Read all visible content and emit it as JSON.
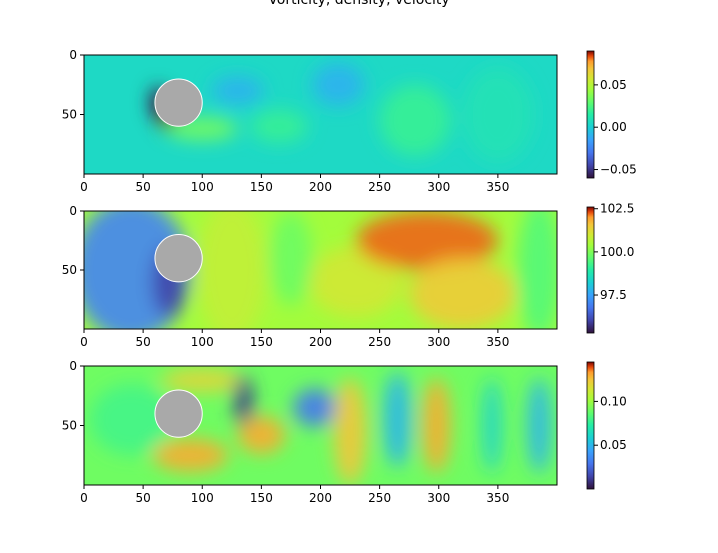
{
  "figure": {
    "title": "Vorticity, density, velocity"
  },
  "chart_data": [
    {
      "type": "heatmap",
      "title": "",
      "field": "vorticity",
      "xlim": [
        0,
        400
      ],
      "ylim": [
        100,
        0
      ],
      "xticks": [
        "0",
        "50",
        "100",
        "150",
        "200",
        "250",
        "300",
        "350"
      ],
      "yticks": [
        "0",
        "50"
      ],
      "colorbar": {
        "range": [
          -0.06,
          0.09
        ],
        "ticks": [
          "0.05",
          "0.00",
          "−0.05"
        ],
        "tick_values": [
          0.05,
          0.0,
          -0.05
        ],
        "colormap": "turbo"
      },
      "obstacle": {
        "shape": "circle",
        "center": [
          80,
          40
        ],
        "radius": 20,
        "color": "#a9a9a9"
      },
      "features": [
        {
          "cx": 70,
          "cy": 48,
          "rx": 8,
          "ry": 16,
          "value": 0.09
        },
        {
          "cx": 62,
          "cy": 40,
          "rx": 6,
          "ry": 14,
          "value": -0.06
        },
        {
          "cx": 100,
          "cy": 62,
          "rx": 30,
          "ry": 10,
          "value": 0.035
        },
        {
          "cx": 130,
          "cy": 30,
          "rx": 22,
          "ry": 12,
          "value": -0.01
        },
        {
          "cx": 165,
          "cy": 60,
          "rx": 24,
          "ry": 14,
          "value": 0.02
        },
        {
          "cx": 215,
          "cy": 25,
          "rx": 22,
          "ry": 18,
          "value": -0.01
        },
        {
          "cx": 280,
          "cy": 55,
          "rx": 30,
          "ry": 30,
          "value": 0.02
        },
        {
          "cx": 350,
          "cy": 50,
          "rx": 30,
          "ry": 40,
          "value": 0.01
        }
      ],
      "background_value": 0.005
    },
    {
      "type": "heatmap",
      "title": "",
      "field": "density",
      "xlim": [
        0,
        400
      ],
      "ylim": [
        100,
        0
      ],
      "xticks": [
        "0",
        "50",
        "100",
        "150",
        "200",
        "250",
        "300",
        "350"
      ],
      "yticks": [
        "0",
        "50"
      ],
      "colorbar": {
        "range": [
          95.3,
          102.6
        ],
        "ticks": [
          "102.5",
          "100.0",
          "97.5"
        ],
        "tick_values": [
          102.5,
          100.0,
          97.5
        ],
        "colormap": "turbo"
      },
      "obstacle": {
        "shape": "circle",
        "center": [
          80,
          40
        ],
        "radius": 20,
        "color": "#a9a9a9"
      },
      "features": [
        {
          "cx": 40,
          "cy": 50,
          "rx": 50,
          "ry": 60,
          "value": 97.0
        },
        {
          "cx": 72,
          "cy": 60,
          "rx": 14,
          "ry": 30,
          "value": 96.0
        },
        {
          "cx": 125,
          "cy": 50,
          "rx": 30,
          "ry": 60,
          "value": 100.8
        },
        {
          "cx": 230,
          "cy": 60,
          "rx": 40,
          "ry": 30,
          "value": 101.0
        },
        {
          "cx": 290,
          "cy": 25,
          "rx": 60,
          "ry": 25,
          "value": 102.2
        },
        {
          "cx": 320,
          "cy": 70,
          "rx": 45,
          "ry": 30,
          "value": 101.5
        },
        {
          "cx": 175,
          "cy": 40,
          "rx": 18,
          "ry": 40,
          "value": 99.8
        },
        {
          "cx": 385,
          "cy": 50,
          "rx": 18,
          "ry": 60,
          "value": 99.5
        }
      ],
      "background_value": 100.4
    },
    {
      "type": "heatmap",
      "title": "",
      "field": "velocity",
      "xlim": [
        0,
        400
      ],
      "ylim": [
        100,
        0
      ],
      "xticks": [
        "0",
        "50",
        "100",
        "150",
        "200",
        "250",
        "300",
        "350"
      ],
      "yticks": [
        "0",
        "50"
      ],
      "colorbar": {
        "range": [
          0.0,
          0.145
        ],
        "ticks": [
          "0.10",
          "0.05"
        ],
        "tick_values": [
          0.1,
          0.05
        ],
        "colormap": "turbo"
      },
      "obstacle": {
        "shape": "circle",
        "center": [
          80,
          40
        ],
        "radius": 20,
        "color": "#a9a9a9"
      },
      "features": [
        {
          "cx": 90,
          "cy": 75,
          "rx": 32,
          "ry": 14,
          "value": 0.13
        },
        {
          "cx": 100,
          "cy": 12,
          "rx": 35,
          "ry": 10,
          "value": 0.12
        },
        {
          "cx": 135,
          "cy": 30,
          "rx": 8,
          "ry": 22,
          "value": 0.01
        },
        {
          "cx": 150,
          "cy": 58,
          "rx": 20,
          "ry": 16,
          "value": 0.13
        },
        {
          "cx": 195,
          "cy": 35,
          "rx": 18,
          "ry": 16,
          "value": 0.03
        },
        {
          "cx": 225,
          "cy": 55,
          "rx": 14,
          "ry": 45,
          "value": 0.125
        },
        {
          "cx": 265,
          "cy": 45,
          "rx": 12,
          "ry": 40,
          "value": 0.05
        },
        {
          "cx": 298,
          "cy": 50,
          "rx": 12,
          "ry": 40,
          "value": 0.13
        },
        {
          "cx": 345,
          "cy": 50,
          "rx": 8,
          "ry": 40,
          "value": 0.06
        },
        {
          "cx": 385,
          "cy": 50,
          "rx": 10,
          "ry": 40,
          "value": 0.05
        },
        {
          "cx": 40,
          "cy": 45,
          "rx": 35,
          "ry": 30,
          "value": 0.08
        }
      ],
      "background_value": 0.09
    }
  ]
}
